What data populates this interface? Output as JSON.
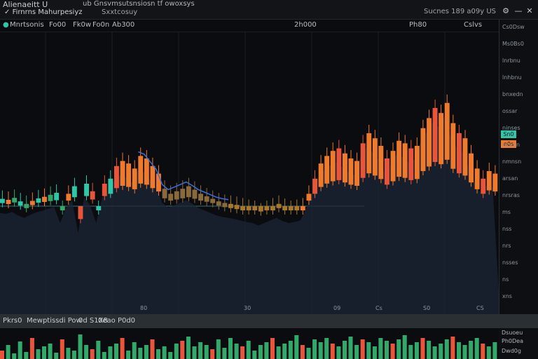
{
  "window": {
    "title": "Alienaeitt U",
    "subtitle": "ub Gnsvmsutsnsiosn tf  owoxsys",
    "check_label": "Firnrns Mahurpesiyz",
    "toolbar_mid": "Sxxtcosuy",
    "toolbar_right": "Sucnes 189  a09y  US"
  },
  "toolbar": {
    "items": [
      "Mnrtsonis",
      "Fo00",
      "Fk0w",
      "Fo0n",
      "Ab300",
      "2h000",
      "Ph80",
      "Cslvs"
    ]
  },
  "price_axis": {
    "labels": [
      "Cs0Dsw",
      "Ms0Bs0",
      "lnrbnu",
      "lnhbnu",
      "bnxedn",
      "ossar",
      "ninses",
      "nrsrsn",
      "nmnsn",
      "arsan",
      "nrsras",
      "ms",
      "nss",
      "nrs",
      "nsses",
      "ns",
      "xns"
    ],
    "last_price_tag": "Sn0",
    "current_tag": "n0s"
  },
  "x_axis": {
    "labels": [
      "80",
      "30",
      "09",
      "Cs",
      "S0",
      "CS"
    ]
  },
  "volume_panel": {
    "label_left": "Pkrs0",
    "label_mid": "Mewptissdi Pow",
    "label_value": "0d S1X8",
    "label_right": "0eao P0d0",
    "axis_labels": [
      "Dsuoeu",
      "Ph0Dea",
      "Dwd0g"
    ]
  },
  "colors": {
    "up": "#f07a2c",
    "down": "#e8553a",
    "teal": "#2ec7a8",
    "blue": "#3b6ee0",
    "green": "#33a86b",
    "grid": "#1a1e24",
    "shadow": "#1c2535"
  },
  "chart_data": {
    "type": "bar",
    "series": [
      {
        "values": [
          280,
          282,
          278,
          285,
          290,
          284,
          279,
          276,
          272,
          268,
          300,
          270,
          255,
          320,
          250,
          265,
          300,
          250,
          240,
          215,
          205,
          210,
          220,
          195,
          200,
          215,
          230,
          260,
          270,
          265,
          260,
          255,
          262,
          270,
          275,
          280,
          285,
          288,
          290,
          292,
          295,
          298,
          300,
          305,
          300,
          295,
          290,
          296,
          300,
          298,
          295,
          270,
          240,
          210,
          195,
          185,
          180,
          190,
          200,
          205,
          170,
          150,
          160,
          175,
          200,
          185,
          165,
          170,
          180,
          175,
          140,
          120,
          100,
          110,
          90,
          130,
          150,
          160,
          190,
          220,
          240,
          225,
          230
        ]
      }
    ],
    "volume": [
      12,
      20,
      8,
      25,
      10,
      30,
      14,
      18,
      22,
      9,
      28,
      16,
      12,
      35,
      20,
      14,
      26,
      10,
      18,
      22,
      30,
      12,
      24,
      16,
      20,
      28,
      14,
      18,
      10,
      22,
      26,
      32,
      18,
      24,
      20,
      14,
      28,
      16,
      30,
      22,
      18,
      26,
      12,
      20,
      24,
      30,
      18,
      22,
      26,
      34,
      20,
      16,
      28,
      24,
      30,
      22,
      18,
      26,
      32,
      20,
      28,
      24,
      18,
      30,
      26,
      22,
      28,
      34,
      20,
      24,
      30,
      26,
      18,
      22,
      28,
      32,
      24,
      20,
      26,
      30,
      22,
      18,
      24
    ]
  }
}
